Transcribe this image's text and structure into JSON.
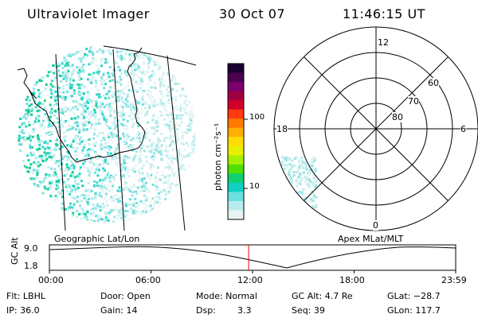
{
  "header": {
    "title": "Ultraviolet Imager",
    "date": "30 Oct 07",
    "time": "11:46:15 UT"
  },
  "colorbar": {
    "unit_label": "photon cm⁻²s⁻¹",
    "ticks": [
      "100",
      "10"
    ],
    "colors": [
      "#1a0033",
      "#4b0050",
      "#7a006e",
      "#a00040",
      "#d0002a",
      "#ff3a10",
      "#ff7a00",
      "#ffae00",
      "#ffdd00",
      "#e8f000",
      "#a8f000",
      "#52e000",
      "#10d070",
      "#10d0c0",
      "#6ae0e0",
      "#b8ecec",
      "#e6f4f4"
    ]
  },
  "polar": {
    "hour_labels": [
      "12",
      "18",
      "6",
      "0"
    ],
    "lat_labels": [
      "60",
      "70",
      "80"
    ]
  },
  "maps": {
    "left_caption": "Geographic Lat/Lon",
    "right_caption": "Apex MLat/MLT"
  },
  "alt_plot": {
    "axis_label": "GC Alt",
    "y_ticks": [
      "9.0",
      "1.8"
    ],
    "x_ticks": [
      "00:00",
      "06:00",
      "12:00",
      "18:00",
      "23:59"
    ],
    "current_time_hours": 11.77,
    "marker_color": "#ff0000"
  },
  "status": {
    "flt": "Flt: LBHL",
    "ip": "IP: 36.0",
    "door": "Door: Open",
    "gain": "Gain: 14",
    "mode": "Mode: Normal",
    "dsp_label": "Dsp:",
    "dsp_value": "3.3",
    "gc_alt": "GC Alt: 4.7 Re",
    "seq": "Seq: 39",
    "glat": "GLat: −28.7",
    "glon": "GLon: 117.7"
  }
}
